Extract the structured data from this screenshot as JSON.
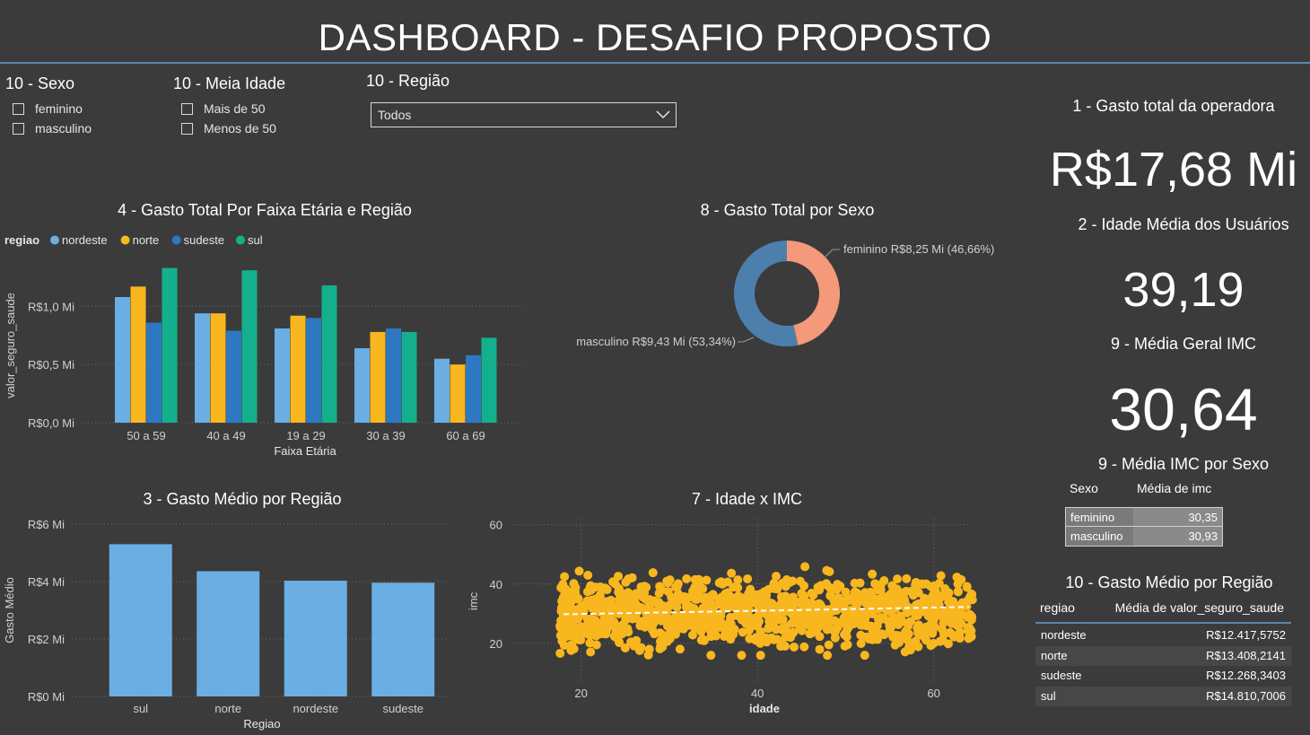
{
  "title": "DASHBOARD - DESAFIO PROPOSTO",
  "filters": {
    "sexo": {
      "title": "10 - Sexo",
      "options": [
        "feminino",
        "masculino"
      ]
    },
    "meia_idade": {
      "title": "10 - Meia Idade",
      "options": [
        "Mais de 50",
        "Menos de 50"
      ]
    },
    "regiao": {
      "title": "10 - Região",
      "selected": "Todos"
    }
  },
  "kpis": {
    "gasto_total": {
      "title": "1 - Gasto total da operadora",
      "value": "R$17,68 Mi"
    },
    "idade_media": {
      "title": "2 - Idade Média dos Usuários",
      "value": "39,19"
    },
    "media_imc": {
      "title": "9 - Média Geral IMC",
      "value": "30,64"
    }
  },
  "colors": {
    "nordeste": "#6aaee3",
    "norte": "#f8b71e",
    "sudeste": "#2e78c2",
    "sul": "#14b08d",
    "feminino": "#f5997b",
    "masculino": "#4d7fac",
    "bar_single": "#6aaee3",
    "scatter": "#f8b71e"
  },
  "imc_sexo": {
    "title": "9 - Média IMC por Sexo",
    "headers": [
      "Sexo",
      "Média de imc"
    ],
    "rows": [
      [
        "feminino",
        "30,35"
      ],
      [
        "masculino",
        "30,93"
      ]
    ]
  },
  "gasto_medio_tabela": {
    "title": "10 - Gasto Médio por Região",
    "headers": [
      "regiao",
      "Média de valor_seguro_saude"
    ],
    "rows": [
      [
        "nordeste",
        "R$12.417,5752"
      ],
      [
        "norte",
        "R$13.408,2141"
      ],
      [
        "sudeste",
        "R$12.268,3403"
      ],
      [
        "sul",
        "R$14.810,7006"
      ]
    ]
  },
  "chart_data": [
    {
      "id": "faixa_regiao",
      "type": "bar",
      "title": "4 - Gasto Total Por Faixa Etária e Região",
      "legend_title": "regiao",
      "legend_position": "top-left",
      "categories": [
        "50 a 59",
        "40 a 49",
        "19 a 29",
        "30 a 39",
        "60 a 69"
      ],
      "series": [
        {
          "name": "nordeste",
          "values": [
            1.08,
            0.94,
            0.81,
            0.64,
            0.55
          ]
        },
        {
          "name": "norte",
          "values": [
            1.17,
            0.94,
            0.92,
            0.78,
            0.5
          ]
        },
        {
          "name": "sudeste",
          "values": [
            0.86,
            0.79,
            0.9,
            0.81,
            0.58
          ]
        },
        {
          "name": "sul",
          "values": [
            1.33,
            1.31,
            1.18,
            0.78,
            0.73
          ]
        }
      ],
      "xlabel": "Faixa Etária",
      "ylabel": "valor_seguro_saude",
      "yticks": [
        0,
        0.5,
        1.0
      ],
      "ytick_labels": [
        "R$0,0 Mi",
        "R$0,5 Mi",
        "R$1,0 Mi"
      ],
      "ylim": [
        0,
        1.35
      ],
      "grid": true
    },
    {
      "id": "sexo_donut",
      "type": "pie",
      "title": "8 - Gasto Total por Sexo",
      "slices": [
        {
          "name": "feminino",
          "value": 8.25,
          "percent": 46.66,
          "label": "feminino R$8,25 Mi (46,66%)"
        },
        {
          "name": "masculino",
          "value": 9.43,
          "percent": 53.34,
          "label": "masculino R$9,43 Mi (53,34%)"
        }
      ]
    },
    {
      "id": "gasto_medio_regiao",
      "type": "bar",
      "title": "3 - Gasto Médio por Região",
      "categories": [
        "sul",
        "norte",
        "nordeste",
        "sudeste"
      ],
      "values": [
        5.3,
        4.36,
        4.03,
        3.96
      ],
      "xlabel": "Regiao",
      "ylabel": "Gasto Médio",
      "yticks": [
        0,
        2,
        4,
        6
      ],
      "ytick_labels": [
        "R$0 Mi",
        "R$2 Mi",
        "R$4 Mi",
        "R$6 Mi"
      ],
      "ylim": [
        0,
        6
      ],
      "grid": true
    },
    {
      "id": "idade_imc",
      "type": "scatter",
      "title": "7 - Idade x IMC",
      "xlabel": "idade",
      "ylabel": "imc",
      "xticks": [
        20,
        40,
        60
      ],
      "yticks": [
        20,
        40,
        60
      ],
      "xlim": [
        18,
        64
      ],
      "ylim": [
        10,
        62
      ],
      "trend": [
        [
          18,
          29.8
        ],
        [
          64,
          32.3
        ]
      ],
      "grid": true
    }
  ]
}
